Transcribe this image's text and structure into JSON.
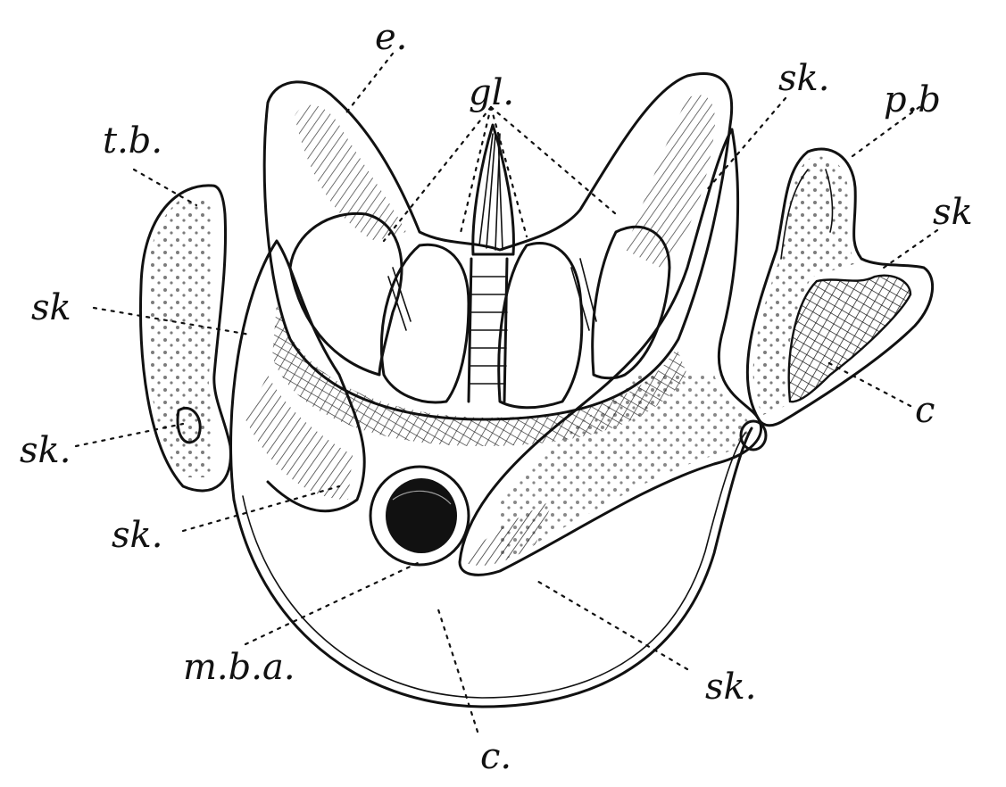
{
  "labels": {
    "e": "e.",
    "gl": "gl.",
    "sk_top_right": "sk.",
    "pb": "p.b",
    "tb": "t.b.",
    "sk_right": "sk",
    "sk_left_upper": "sk",
    "sk_left_mid": "sk.",
    "c_right": "c",
    "sk_left_lower": "sk.",
    "mba": "m.b.a.",
    "sk_bottom_right": "sk.",
    "c_bottom": "c."
  },
  "colors": {
    "ink": "#111111",
    "paper": "#ffffff"
  }
}
